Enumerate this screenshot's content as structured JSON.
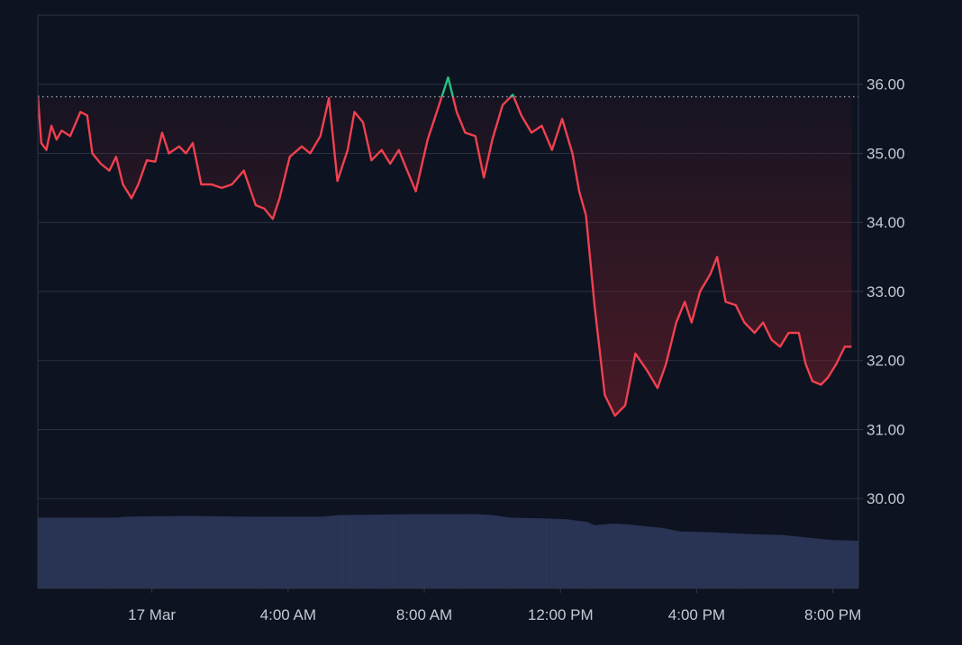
{
  "colors": {
    "background": "#0e1321",
    "grid": "#2a3142",
    "frame": "#2f3647",
    "line_below": "#f0404f",
    "line_above": "#26c281",
    "fill": "#7a1f2a",
    "baseline": "#9aa3b5",
    "volume": "#2b3557",
    "axis_text": "#c4c9d4"
  },
  "chart_data": {
    "type": "area",
    "title": "",
    "xlabel": "",
    "ylabel": "",
    "baseline_value": 35.82,
    "ylim": [
      28.7,
      37.0
    ],
    "y_ticks": [
      "36.00",
      "35.00",
      "34.00",
      "33.00",
      "32.00",
      "31.00",
      "30.00"
    ],
    "y_tick_values": [
      36,
      35,
      34,
      33,
      32,
      31,
      30
    ],
    "x_ticks": [
      "17 Mar",
      "4:00 AM",
      "8:00 AM",
      "12:00 PM",
      "4:00 PM",
      "8:00 PM"
    ],
    "x_tick_hours": [
      0,
      4,
      8,
      12,
      16,
      20
    ],
    "x_range_hours": [
      -3.35,
      20.75
    ],
    "series": [
      {
        "type": "line",
        "points": [
          [
            -3.35,
            35.84
          ],
          [
            -3.25,
            35.15
          ],
          [
            -3.1,
            35.05
          ],
          [
            -2.95,
            35.4
          ],
          [
            -2.8,
            35.2
          ],
          [
            -2.65,
            35.33
          ],
          [
            -2.4,
            35.25
          ],
          [
            -2.1,
            35.6
          ],
          [
            -1.9,
            35.55
          ],
          [
            -1.75,
            35.0
          ],
          [
            -1.5,
            34.85
          ],
          [
            -1.25,
            34.75
          ],
          [
            -1.05,
            34.95
          ],
          [
            -0.85,
            34.55
          ],
          [
            -0.6,
            34.35
          ],
          [
            -0.4,
            34.55
          ],
          [
            -0.15,
            34.9
          ],
          [
            0.1,
            34.88
          ],
          [
            0.3,
            35.3
          ],
          [
            0.5,
            35.0
          ],
          [
            0.8,
            35.1
          ],
          [
            1.0,
            35.0
          ],
          [
            1.2,
            35.15
          ],
          [
            1.45,
            34.55
          ],
          [
            1.75,
            34.55
          ],
          [
            2.05,
            34.5
          ],
          [
            2.35,
            34.55
          ],
          [
            2.7,
            34.75
          ],
          [
            3.05,
            34.25
          ],
          [
            3.3,
            34.2
          ],
          [
            3.55,
            34.05
          ],
          [
            3.75,
            34.35
          ],
          [
            4.05,
            34.95
          ],
          [
            4.4,
            35.1
          ],
          [
            4.65,
            35.0
          ],
          [
            4.95,
            35.25
          ],
          [
            5.2,
            35.8
          ],
          [
            5.45,
            34.6
          ],
          [
            5.75,
            35.05
          ],
          [
            5.95,
            35.6
          ],
          [
            6.2,
            35.45
          ],
          [
            6.45,
            34.9
          ],
          [
            6.75,
            35.05
          ],
          [
            7.0,
            34.85
          ],
          [
            7.25,
            35.05
          ],
          [
            7.5,
            34.75
          ],
          [
            7.75,
            34.45
          ],
          [
            8.1,
            35.2
          ],
          [
            8.4,
            35.65
          ],
          [
            8.7,
            36.1
          ],
          [
            8.95,
            35.6
          ],
          [
            9.2,
            35.3
          ],
          [
            9.5,
            35.25
          ],
          [
            9.75,
            34.65
          ],
          [
            10.0,
            35.2
          ],
          [
            10.3,
            35.7
          ],
          [
            10.6,
            35.85
          ],
          [
            10.85,
            35.55
          ],
          [
            11.15,
            35.3
          ],
          [
            11.45,
            35.4
          ],
          [
            11.75,
            35.05
          ],
          [
            12.05,
            35.5
          ],
          [
            12.35,
            35.0
          ],
          [
            12.55,
            34.45
          ],
          [
            12.75,
            34.1
          ],
          [
            13.0,
            32.8
          ],
          [
            13.3,
            31.5
          ],
          [
            13.6,
            31.2
          ],
          [
            13.9,
            31.35
          ],
          [
            14.2,
            32.1
          ],
          [
            14.55,
            31.85
          ],
          [
            14.85,
            31.6
          ],
          [
            15.1,
            31.95
          ],
          [
            15.4,
            32.55
          ],
          [
            15.65,
            32.85
          ],
          [
            15.85,
            32.55
          ],
          [
            16.1,
            33.0
          ],
          [
            16.4,
            33.25
          ],
          [
            16.6,
            33.5
          ],
          [
            16.85,
            32.85
          ],
          [
            17.15,
            32.8
          ],
          [
            17.4,
            32.55
          ],
          [
            17.7,
            32.4
          ],
          [
            17.95,
            32.55
          ],
          [
            18.2,
            32.3
          ],
          [
            18.45,
            32.2
          ],
          [
            18.7,
            32.4
          ],
          [
            19.0,
            32.4
          ],
          [
            19.2,
            31.95
          ],
          [
            19.4,
            31.7
          ],
          [
            19.65,
            31.65
          ],
          [
            19.85,
            31.75
          ],
          [
            20.1,
            31.95
          ],
          [
            20.35,
            32.2
          ],
          [
            20.55,
            32.2
          ]
        ]
      },
      {
        "type": "volume",
        "y_range": [
          0,
          1
        ],
        "points": [
          [
            -3.35,
            0.82
          ],
          [
            -1.0,
            0.82
          ],
          [
            -0.85,
            0.83
          ],
          [
            1.0,
            0.84
          ],
          [
            3.0,
            0.83
          ],
          [
            5.0,
            0.83
          ],
          [
            5.5,
            0.85
          ],
          [
            8.0,
            0.86
          ],
          [
            9.5,
            0.86
          ],
          [
            10.0,
            0.85
          ],
          [
            10.5,
            0.82
          ],
          [
            11.5,
            0.81
          ],
          [
            12.2,
            0.8
          ],
          [
            12.8,
            0.77
          ],
          [
            13.0,
            0.73
          ],
          [
            13.5,
            0.75
          ],
          [
            14.0,
            0.74
          ],
          [
            14.5,
            0.72
          ],
          [
            15.0,
            0.7
          ],
          [
            15.5,
            0.66
          ],
          [
            16.5,
            0.65
          ],
          [
            17.5,
            0.63
          ],
          [
            18.5,
            0.62
          ],
          [
            19.2,
            0.59
          ],
          [
            20.0,
            0.56
          ],
          [
            20.75,
            0.55
          ]
        ]
      }
    ]
  }
}
